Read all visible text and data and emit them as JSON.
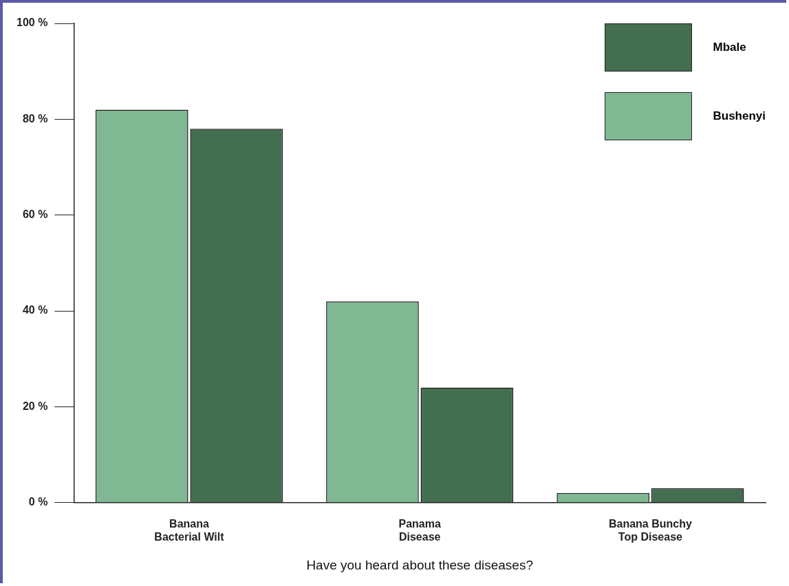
{
  "chart_data": {
    "type": "bar",
    "xlabel": "Have you heard about these diseases?",
    "categories": [
      "Banana\nBacterial Wilt",
      "Panama\nDisease",
      "Banana Bunchy\nTop Disease"
    ],
    "series": [
      {
        "name": "Bushenyi",
        "color": "#80b894",
        "values": [
          82,
          42,
          2
        ]
      },
      {
        "name": "Mbale",
        "color": "#436e50",
        "values": [
          78,
          24,
          3
        ]
      }
    ],
    "ylim": [
      0,
      100
    ],
    "yticks": [
      {
        "value": 0,
        "label": "0 %"
      },
      {
        "value": 20,
        "label": "20 %"
      },
      {
        "value": 40,
        "label": "40 %"
      },
      {
        "value": 60,
        "label": "60 %"
      },
      {
        "value": 80,
        "label": "80 %"
      },
      {
        "value": 100,
        "label": "100 %"
      }
    ],
    "grid": false,
    "legend": "top right"
  }
}
